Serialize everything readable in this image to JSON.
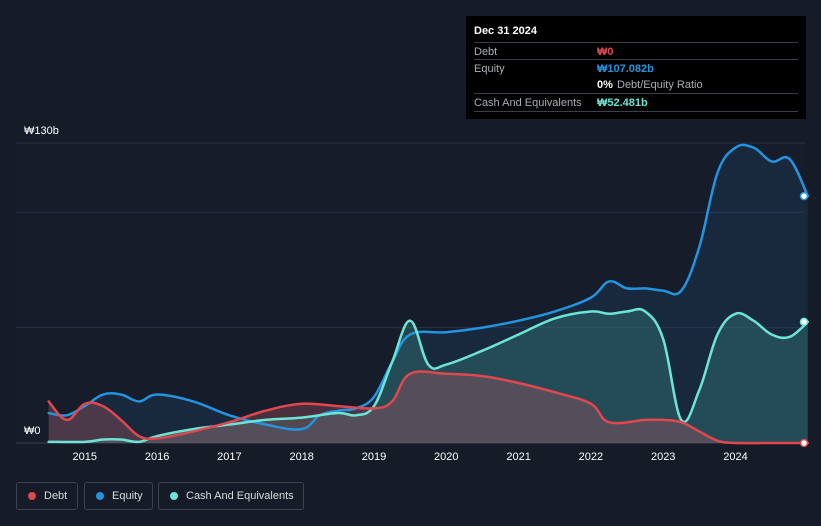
{
  "tooltip": {
    "date": "Dec 31 2024",
    "debt_label": "Debt",
    "debt_value": "₩0",
    "equity_label": "Equity",
    "equity_value": "₩107.082b",
    "ratio_value": "0%",
    "ratio_label": "Debt/Equity Ratio",
    "cash_label": "Cash And Equivalents",
    "cash_value": "₩52.481b"
  },
  "y_axis": {
    "top_label": "₩130b",
    "bottom_label": "₩0"
  },
  "legend": {
    "debt": "Debt",
    "equity": "Equity",
    "cash": "Cash And Equivalents"
  },
  "colors": {
    "background": "#151b27",
    "debt": "#e0474f",
    "equity": "#2394df",
    "cash": "#6ce5d6"
  },
  "chart_data": {
    "type": "area",
    "ylim": [
      0,
      130
    ],
    "xlim": [
      2014.5,
      2025.0
    ],
    "y_unit": "₩b",
    "x_ticks": [
      2015,
      2016,
      2017,
      2018,
      2019,
      2020,
      2021,
      2022,
      2023,
      2024
    ],
    "grid": true,
    "legend_position": "bottom-left",
    "series": [
      {
        "name": "Debt",
        "key": "debt",
        "points": [
          [
            2014.5,
            18
          ],
          [
            2014.75,
            10
          ],
          [
            2015.0,
            17
          ],
          [
            2015.25,
            16
          ],
          [
            2015.5,
            10
          ],
          [
            2015.75,
            3
          ],
          [
            2016.0,
            2
          ],
          [
            2016.5,
            5
          ],
          [
            2017.0,
            9
          ],
          [
            2017.5,
            14
          ],
          [
            2018.0,
            17
          ],
          [
            2018.5,
            16
          ],
          [
            2019.0,
            15
          ],
          [
            2019.25,
            18
          ],
          [
            2019.5,
            30
          ],
          [
            2020.0,
            30
          ],
          [
            2020.5,
            29
          ],
          [
            2021.0,
            26
          ],
          [
            2021.5,
            22
          ],
          [
            2022.0,
            17
          ],
          [
            2022.25,
            9
          ],
          [
            2022.75,
            10
          ],
          [
            2023.0,
            10
          ],
          [
            2023.25,
            9
          ],
          [
            2023.5,
            5
          ],
          [
            2023.75,
            1
          ],
          [
            2024.0,
            0
          ],
          [
            2024.5,
            0
          ],
          [
            2025.0,
            0
          ]
        ]
      },
      {
        "name": "Equity",
        "key": "equity",
        "points": [
          [
            2014.5,
            13
          ],
          [
            2014.75,
            12
          ],
          [
            2015.0,
            16
          ],
          [
            2015.25,
            21
          ],
          [
            2015.5,
            21
          ],
          [
            2015.75,
            18
          ],
          [
            2016.0,
            21
          ],
          [
            2016.5,
            18
          ],
          [
            2017.0,
            12
          ],
          [
            2017.5,
            8
          ],
          [
            2018.0,
            6
          ],
          [
            2018.25,
            12
          ],
          [
            2018.5,
            14
          ],
          [
            2018.75,
            15
          ],
          [
            2019.0,
            20
          ],
          [
            2019.25,
            35
          ],
          [
            2019.5,
            47
          ],
          [
            2020.0,
            48
          ],
          [
            2020.5,
            50
          ],
          [
            2021.0,
            53
          ],
          [
            2021.5,
            57
          ],
          [
            2022.0,
            63
          ],
          [
            2022.25,
            70
          ],
          [
            2022.5,
            67
          ],
          [
            2022.75,
            67
          ],
          [
            2023.0,
            66
          ],
          [
            2023.25,
            66
          ],
          [
            2023.5,
            85
          ],
          [
            2023.75,
            117
          ],
          [
            2024.0,
            128
          ],
          [
            2024.25,
            128
          ],
          [
            2024.5,
            122
          ],
          [
            2024.75,
            123
          ],
          [
            2025.0,
            107
          ]
        ]
      },
      {
        "name": "Cash And Equivalents",
        "key": "cash",
        "points": [
          [
            2014.5,
            0.5
          ],
          [
            2015.0,
            0.5
          ],
          [
            2015.25,
            1.5
          ],
          [
            2015.5,
            1.5
          ],
          [
            2015.75,
            0.5
          ],
          [
            2016.0,
            3
          ],
          [
            2016.5,
            6
          ],
          [
            2017.0,
            8
          ],
          [
            2017.5,
            10
          ],
          [
            2018.0,
            11
          ],
          [
            2018.5,
            13
          ],
          [
            2018.75,
            12
          ],
          [
            2019.0,
            16
          ],
          [
            2019.25,
            35
          ],
          [
            2019.5,
            53
          ],
          [
            2019.75,
            34
          ],
          [
            2020.0,
            34
          ],
          [
            2020.5,
            40
          ],
          [
            2021.0,
            47
          ],
          [
            2021.5,
            54
          ],
          [
            2022.0,
            57
          ],
          [
            2022.25,
            56
          ],
          [
            2022.5,
            57
          ],
          [
            2022.75,
            57
          ],
          [
            2023.0,
            45
          ],
          [
            2023.25,
            10
          ],
          [
            2023.5,
            23
          ],
          [
            2023.75,
            47
          ],
          [
            2024.0,
            56
          ],
          [
            2024.25,
            53
          ],
          [
            2024.5,
            47
          ],
          [
            2024.75,
            46
          ],
          [
            2025.0,
            52.5
          ]
        ]
      }
    ]
  }
}
